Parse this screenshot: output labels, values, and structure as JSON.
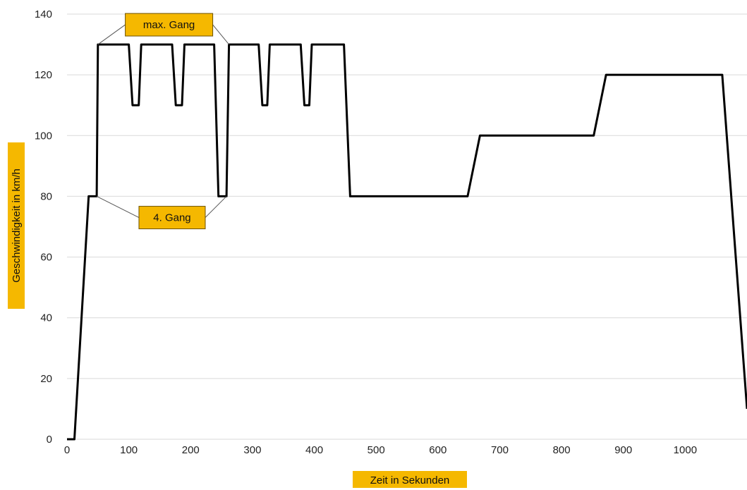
{
  "chart_data": {
    "type": "line",
    "xlabel": "Zeit in Sekunden",
    "ylabel": "Geschwindigkeit in km/h",
    "xlim": [
      0,
      1100
    ],
    "ylim": [
      0,
      140
    ],
    "xticks": [
      0,
      100,
      200,
      300,
      400,
      500,
      600,
      700,
      800,
      900,
      1000
    ],
    "yticks": [
      0,
      20,
      40,
      60,
      80,
      100,
      120,
      140
    ],
    "grid": "horizontal",
    "series": [
      {
        "x": [
          0,
          12,
          35,
          48,
          50,
          100,
          106,
          116,
          120,
          170,
          176,
          186,
          190,
          238,
          245,
          258,
          262,
          310,
          316,
          324,
          328,
          378,
          384,
          392,
          396,
          448,
          458,
          648,
          668,
          852,
          872,
          1060,
          1100
        ],
        "values": [
          0,
          0,
          80,
          80,
          130,
          130,
          110,
          110,
          130,
          130,
          110,
          110,
          130,
          130,
          80,
          80,
          130,
          130,
          110,
          110,
          130,
          130,
          110,
          110,
          130,
          130,
          80,
          80,
          100,
          100,
          120,
          120,
          10
        ]
      }
    ],
    "annotations": [
      {
        "text": "max. Gang",
        "x": 165,
        "y": 136.5,
        "targets": [
          [
            50,
            130
          ],
          [
            262,
            130
          ]
        ]
      },
      {
        "text": "4. Gang",
        "x": 170,
        "y": 73,
        "targets": [
          [
            48,
            80
          ],
          [
            258,
            80
          ]
        ]
      }
    ]
  },
  "colors": {
    "line": "#000000",
    "label_background": "#f5b800",
    "label_border": "#6b5000",
    "grid": "#d9d9d9"
  }
}
